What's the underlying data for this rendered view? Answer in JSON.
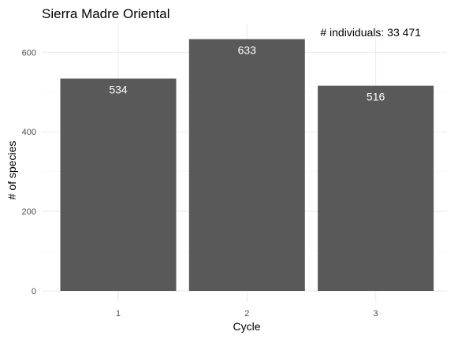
{
  "chart_data": {
    "type": "bar",
    "title": "Sierra Madre Oriental",
    "annotation": "# individuals: 33 471",
    "xlabel": "Cycle",
    "ylabel": "# of species",
    "categories": [
      "1",
      "2",
      "3"
    ],
    "values": [
      534,
      633,
      516
    ],
    "value_labels": [
      "534",
      "633",
      "516"
    ],
    "yticks": [
      0,
      200,
      400,
      600
    ],
    "ytick_labels": [
      "0",
      "200",
      "400",
      "600"
    ],
    "ylim": [
      0,
      665
    ],
    "grid": true,
    "legend": "none",
    "bar_color": "#595959",
    "grid_color": "#ebebeb",
    "minor_grid_color": "#f3f3f3"
  }
}
